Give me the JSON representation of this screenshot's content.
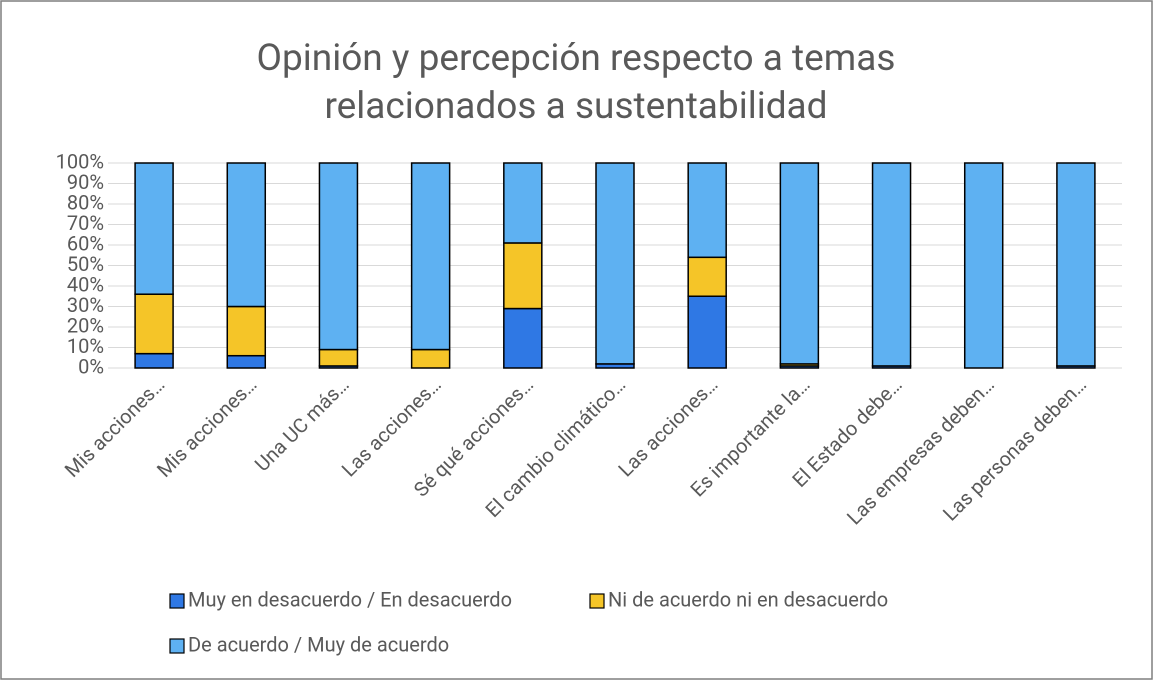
{
  "chart_data": {
    "type": "stacked_bar",
    "title": [
      "Opinión y percepción respecto a temas",
      "relacionados a sustentabilidad"
    ],
    "categories": [
      "Mis acciones…",
      "Mis acciones…",
      "Una UC más…",
      "Las acciones…",
      "Sé qué acciones…",
      "El cambio climático…",
      "Las acciones…",
      "Es importante la…",
      "El Estado debe…",
      "Las empresas deben…",
      "Las personas deben…"
    ],
    "series": [
      {
        "name": "Muy en desacuerdo / En desacuerdo",
        "color": "#2f78e4",
        "values": [
          7,
          6,
          1,
          0,
          29,
          2,
          35,
          1,
          1,
          0,
          1
        ]
      },
      {
        "name": "Ni de acuerdo ni en desacuerdo",
        "color": "#f5c528",
        "values": [
          29,
          24,
          8,
          9,
          32,
          0,
          19,
          1,
          0,
          0,
          0
        ]
      },
      {
        "name": "De acuerdo / Muy de acuerdo",
        "color": "#5eb1f2",
        "values": [
          64,
          70,
          91,
          91,
          39,
          98,
          46,
          98,
          99,
          100,
          99
        ]
      }
    ],
    "ylim": [
      0,
      100
    ],
    "yticks": [
      {
        "value": 0,
        "label": "0%"
      },
      {
        "value": 10,
        "label": "10%"
      },
      {
        "value": 20,
        "label": "20%"
      },
      {
        "value": 30,
        "label": "30%"
      },
      {
        "value": 40,
        "label": "40%"
      },
      {
        "value": 50,
        "label": "50%"
      },
      {
        "value": 60,
        "label": "60%"
      },
      {
        "value": 70,
        "label": "70%"
      },
      {
        "value": 80,
        "label": "80%"
      },
      {
        "value": 90,
        "label": "90%"
      },
      {
        "value": 100,
        "label": "100%"
      }
    ],
    "grid": true,
    "legend": "bottom"
  }
}
